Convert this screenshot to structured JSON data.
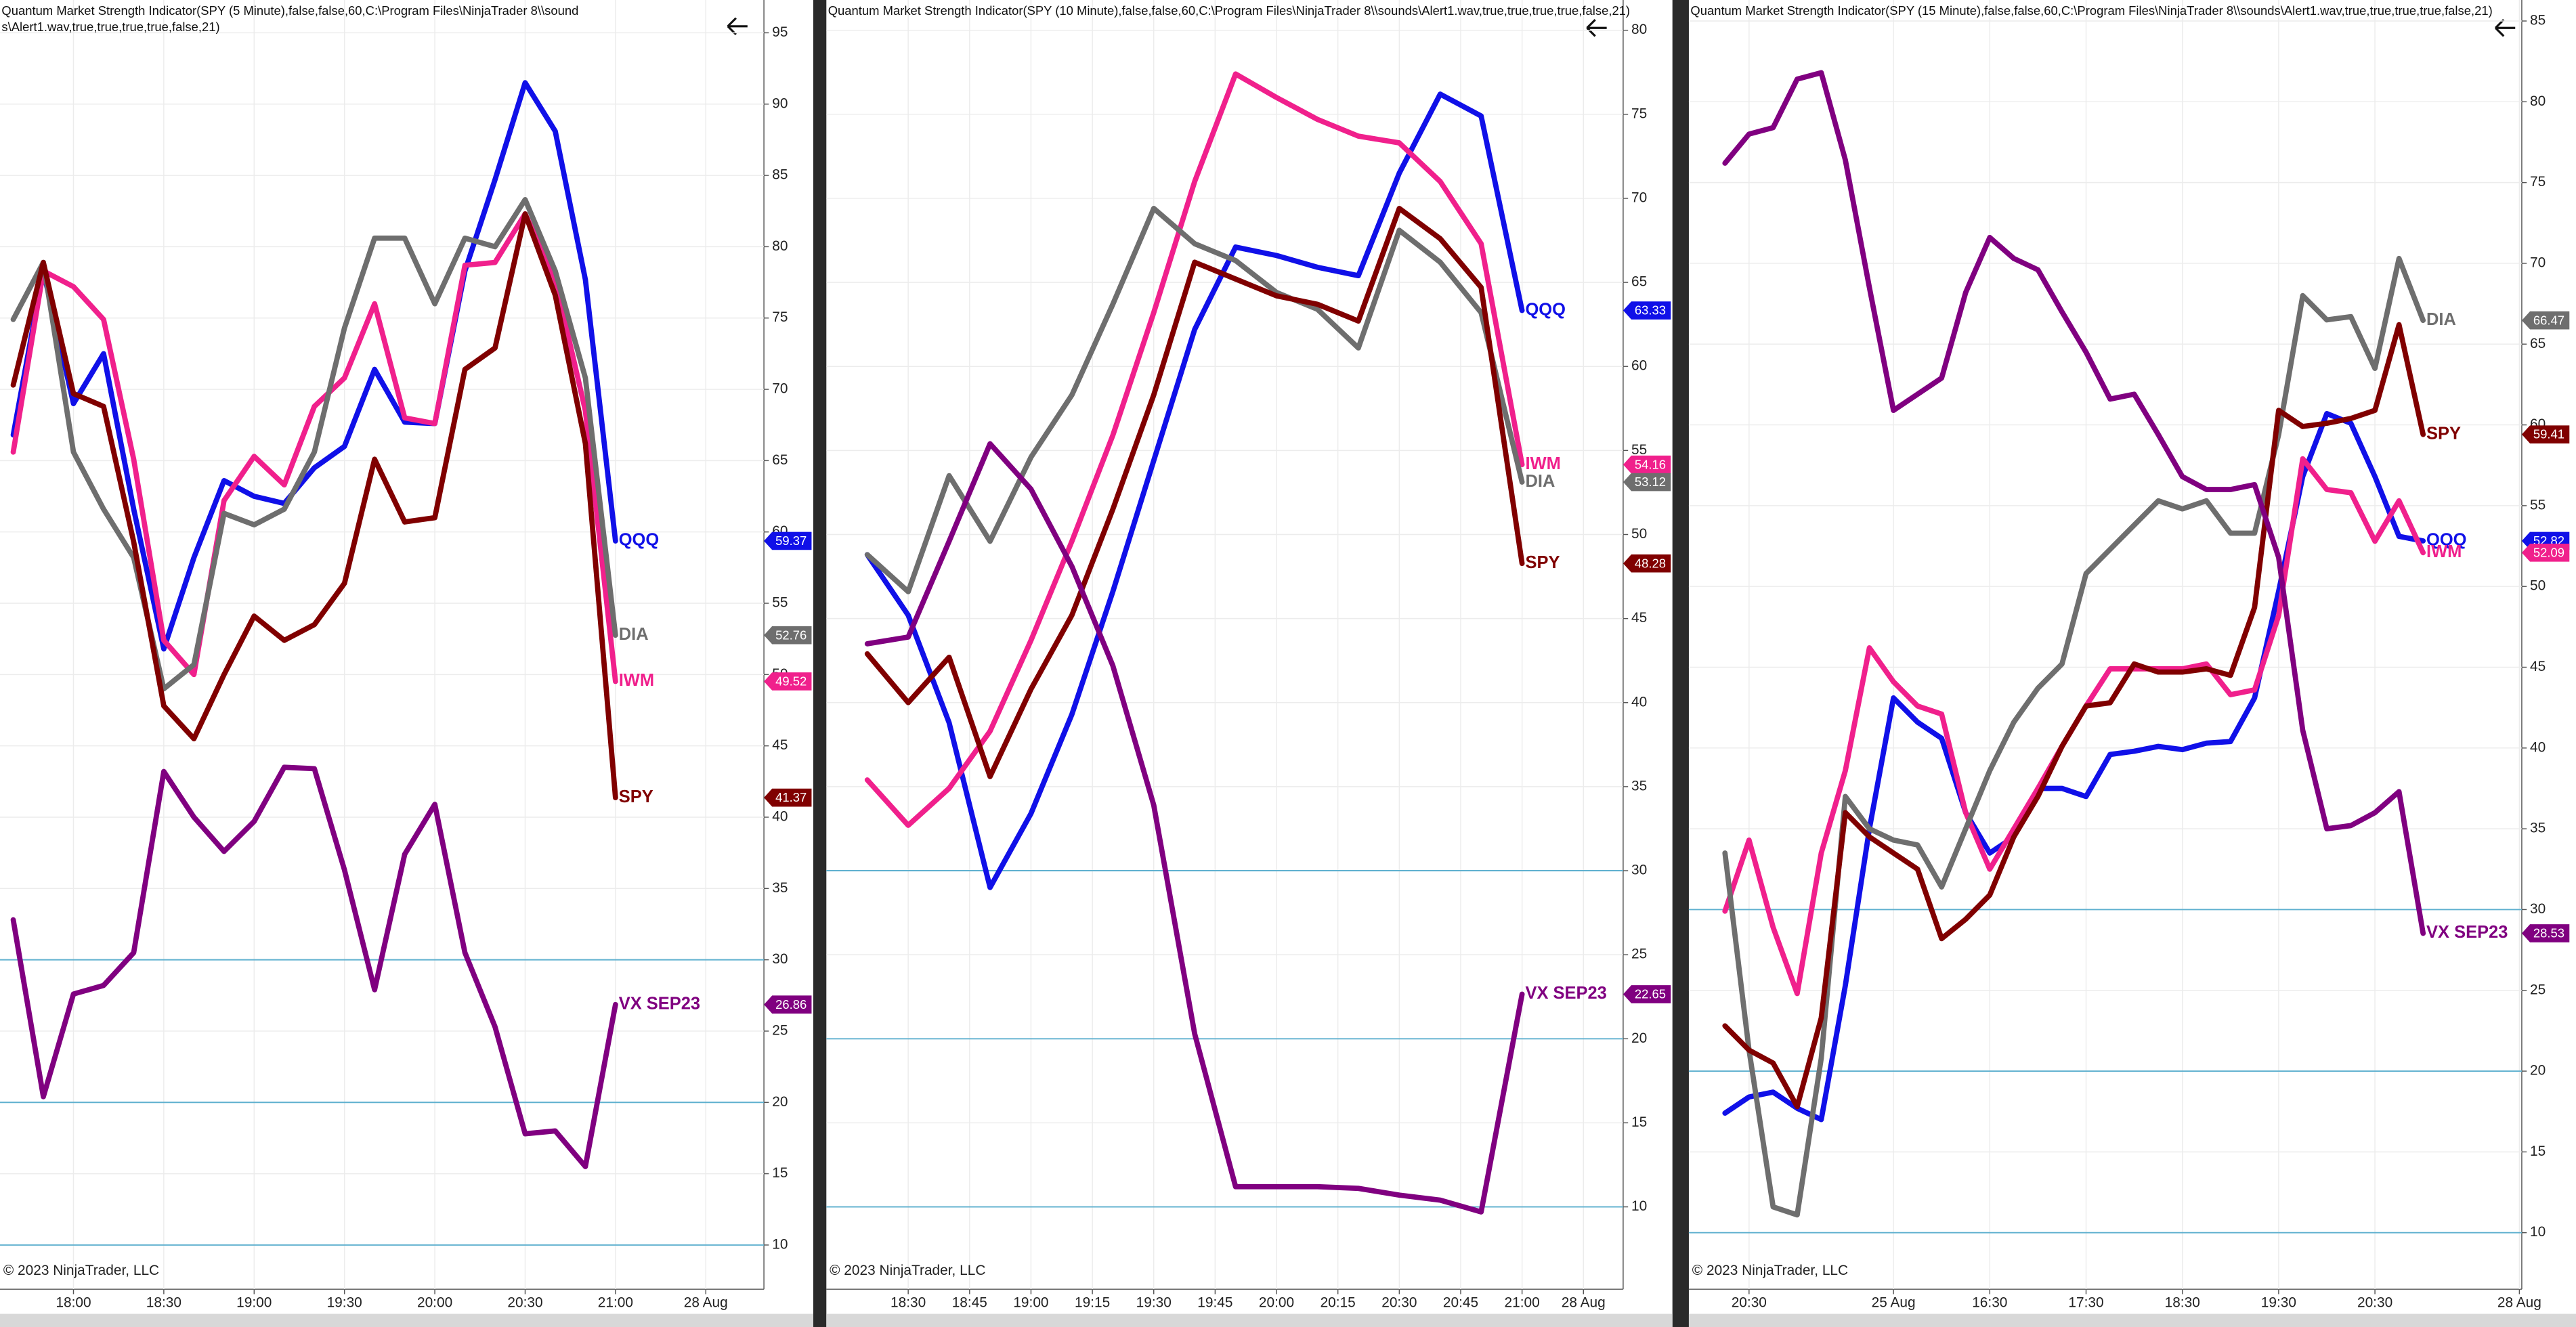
{
  "chart_data": [
    {
      "type": "line",
      "title": "Quantum Market Strength Indicator(SPY (5 Minute),false,false,60,C:\\Program Files\\NinjaTrader 8\\\\sounds\\Alert1.wav,true,true,true,true,false,21)",
      "copyright": "© 2023 NinjaTrader, LLC",
      "xlim": [
        -0.44,
        24.93
      ],
      "xticks": [
        {
          "value": 2,
          "label": "18:00"
        },
        {
          "value": 5,
          "label": "18:30"
        },
        {
          "value": 8,
          "label": "19:00"
        },
        {
          "value": 11,
          "label": "19:30"
        },
        {
          "value": 14,
          "label": "20:00"
        },
        {
          "value": 17,
          "label": "20:30"
        },
        {
          "value": 20,
          "label": "21:00"
        },
        {
          "value": 23,
          "label": "28 Aug"
        }
      ],
      "ylim": [
        6.9,
        97.3
      ],
      "yticks": [
        10,
        15,
        20,
        25,
        30,
        35,
        40,
        45,
        50,
        55,
        60,
        65,
        70,
        75,
        80,
        85,
        90,
        95
      ],
      "levels": [
        30,
        20,
        10
      ],
      "grid": true,
      "series": [
        {
          "name": "QQQ",
          "color": "#1010e8",
          "values": [
            66.8,
            78.3,
            69,
            72.5,
            61.6,
            51.8,
            58.2,
            63.6,
            62.5,
            62,
            64.5,
            66,
            71.4,
            67.7,
            67.6,
            78.3,
            84.7,
            91.5,
            88.1,
            77.7,
            59.37
          ]
        },
        {
          "name": "IWM",
          "color": "#f0208c",
          "values": [
            65.6,
            78.3,
            77.2,
            74.9,
            65.1,
            52.4,
            50,
            62.2,
            65.3,
            63.3,
            68.8,
            70.8,
            76,
            68,
            67.6,
            78.7,
            78.9,
            82.3,
            77.7,
            68.5,
            49.52
          ]
        },
        {
          "name": "DIA",
          "color": "#6e6e6e",
          "values": [
            74.9,
            78.9,
            65.6,
            61.6,
            58.2,
            49,
            50.7,
            61.3,
            60.5,
            61.6,
            65.6,
            74.3,
            80.6,
            80.6,
            76,
            80.6,
            80,
            83.3,
            78.3,
            70.8,
            52.76
          ]
        },
        {
          "name": "SPY",
          "color": "#800000",
          "values": [
            70.3,
            78.9,
            69.7,
            68.8,
            59.3,
            47.8,
            45.5,
            50,
            54.1,
            52.4,
            53.5,
            56.4,
            65.1,
            60.7,
            61,
            71.4,
            72.9,
            82.3,
            76.6,
            66.2,
            41.37
          ]
        },
        {
          "name": "VX SEP23",
          "color": "#800080",
          "values": [
            32.8,
            20.4,
            27.6,
            28.2,
            30.5,
            43.2,
            40,
            37.6,
            39.7,
            43.5,
            43.4,
            36.3,
            27.9,
            37.4,
            40.9,
            30.5,
            25.3,
            17.8,
            18,
            15.5,
            26.86
          ]
        }
      ]
    },
    {
      "type": "line",
      "title": "Quantum Market Strength Indicator(SPY (10 Minute),false,false,60,C:\\Program Files\\NinjaTrader 8\\\\sounds\\Alert1.wav,true,true,true,true,false,21)",
      "copyright": "© 2023 NinjaTrader, LLC",
      "xlim": [
        -1.0,
        18.47
      ],
      "xticks": [
        {
          "value": 1,
          "label": "18:30"
        },
        {
          "value": 2.5,
          "label": "18:45"
        },
        {
          "value": 4,
          "label": "19:00"
        },
        {
          "value": 5.5,
          "label": "19:15"
        },
        {
          "value": 7,
          "label": "19:30"
        },
        {
          "value": 8.5,
          "label": "19:45"
        },
        {
          "value": 10,
          "label": "20:00"
        },
        {
          "value": 11.5,
          "label": "20:15"
        },
        {
          "value": 13,
          "label": "20:30"
        },
        {
          "value": 14.5,
          "label": "20:45"
        },
        {
          "value": 16,
          "label": "21:00"
        },
        {
          "value": 17.5,
          "label": "28 Aug"
        }
      ],
      "ylim": [
        5.1,
        81.8
      ],
      "yticks": [
        10,
        15,
        20,
        25,
        30,
        35,
        40,
        45,
        50,
        55,
        60,
        65,
        70,
        75,
        80
      ],
      "levels": [
        30,
        20,
        10
      ],
      "grid": true,
      "series": [
        {
          "name": "QQQ",
          "color": "#1010e8",
          "values": [
            48.8,
            45.2,
            38.8,
            29,
            33.4,
            39.3,
            46.6,
            54.4,
            62.2,
            67.1,
            66.6,
            65.9,
            65.4,
            71.5,
            76.2,
            74.9,
            63.33
          ]
        },
        {
          "name": "IWM",
          "color": "#f0208c",
          "values": [
            35.4,
            32.7,
            34.9,
            38.3,
            43.7,
            49.6,
            55.9,
            63.2,
            71,
            77.4,
            76,
            74.7,
            73.7,
            73.3,
            71,
            67.3,
            54.16
          ]
        },
        {
          "name": "DIA",
          "color": "#6e6e6e",
          "values": [
            48.8,
            46.6,
            53.5,
            49.6,
            54.6,
            58.3,
            63.7,
            69.4,
            67.3,
            66.3,
            64.4,
            63.4,
            61.1,
            68.1,
            66.2,
            63.2,
            53.12
          ]
        },
        {
          "name": "SPY",
          "color": "#800000",
          "values": [
            42.9,
            40,
            42.7,
            35.6,
            40.8,
            45.2,
            51.5,
            58.3,
            66.2,
            65.2,
            64.2,
            63.7,
            62.7,
            69.4,
            67.6,
            64.7,
            48.28
          ]
        },
        {
          "name": "VX SEP23",
          "color": "#800080",
          "values": [
            43.5,
            43.9,
            49.6,
            55.4,
            52.7,
            48.1,
            42.2,
            33.9,
            20.3,
            11.2,
            11.2,
            11.2,
            11.1,
            10.7,
            10.4,
            9.7,
            22.65
          ]
        }
      ]
    },
    {
      "type": "line",
      "title": "Quantum Market Strength Indicator(SPY (15 Minute),false,false,60,C:\\Program Files\\NinjaTrader 8\\\\sounds\\Alert1.wav,true,true,true,true,false,21)",
      "copyright": "© 2023 NinjaTrader, LLC",
      "xlim": [
        -1.5,
        33.1
      ],
      "xticks": [
        {
          "value": 1,
          "label": "20:30"
        },
        {
          "value": 7,
          "label": "25 Aug"
        },
        {
          "value": 11,
          "label": "16:30"
        },
        {
          "value": 15,
          "label": "17:30"
        },
        {
          "value": 19,
          "label": "18:30"
        },
        {
          "value": 23,
          "label": "19:30"
        },
        {
          "value": 27,
          "label": "20:30"
        },
        {
          "value": 33,
          "label": "28 Aug"
        }
      ],
      "ylim": [
        6.5,
        86.3
      ],
      "yticks": [
        10,
        15,
        20,
        25,
        30,
        35,
        40,
        45,
        50,
        55,
        60,
        65,
        70,
        75,
        80,
        85
      ],
      "levels": [
        30,
        20,
        10
      ],
      "grid": true,
      "series": [
        {
          "name": "QQQ",
          "color": "#1010e8",
          "values": [
            17.4,
            18.4,
            18.7,
            17.7,
            17,
            25.3,
            35,
            43.1,
            41.6,
            40.6,
            36,
            33.5,
            34.5,
            37.5,
            37.5,
            37,
            39.6,
            39.8,
            40.1,
            39.9,
            40.3,
            40.4,
            43.1,
            49.7,
            56.8,
            60.7,
            60.1,
            56.8,
            53.1,
            52.82
          ]
        },
        {
          "name": "IWM",
          "color": "#f0208c",
          "values": [
            29.9,
            34.3,
            28.9,
            24.8,
            33.5,
            38.6,
            46.2,
            44.1,
            42.6,
            42.1,
            36,
            32.5,
            35,
            37.5,
            40.1,
            42.6,
            44.9,
            44.9,
            44.9,
            44.9,
            45.2,
            43.3,
            43.6,
            48.2,
            57.9,
            56,
            55.8,
            52.8,
            55.3,
            52.09
          ]
        },
        {
          "name": "DIA",
          "color": "#6e6e6e",
          "values": [
            33.5,
            21.3,
            11.6,
            11.1,
            20.8,
            37,
            35,
            34.3,
            34,
            31.4,
            35,
            38.6,
            41.6,
            43.7,
            45.2,
            50.8,
            52.3,
            53.8,
            55.3,
            54.8,
            55.3,
            53.3,
            53.3,
            59.4,
            68,
            66.5,
            66.7,
            63.5,
            70.3,
            66.47
          ]
        },
        {
          "name": "SPY",
          "color": "#800000",
          "values": [
            22.8,
            21.3,
            20.5,
            17.8,
            23.3,
            36,
            34.5,
            33.5,
            32.5,
            28.2,
            29.4,
            30.9,
            34.5,
            37,
            40.1,
            42.6,
            42.8,
            45.2,
            44.7,
            44.7,
            44.9,
            44.5,
            48.7,
            60.9,
            59.9,
            60.1,
            60.4,
            60.9,
            66.2,
            59.41
          ]
        },
        {
          "name": "VX SEP23",
          "color": "#800080",
          "values": [
            76.2,
            78,
            78.4,
            81.4,
            81.8,
            76.4,
            68.5,
            60.9,
            61.9,
            62.9,
            68.2,
            71.6,
            70.3,
            69.6,
            67,
            64.5,
            61.6,
            61.9,
            59.4,
            56.8,
            56,
            56,
            56.3,
            51.8,
            41.1,
            35,
            35.2,
            36,
            37.3,
            28.53
          ]
        }
      ]
    }
  ]
}
